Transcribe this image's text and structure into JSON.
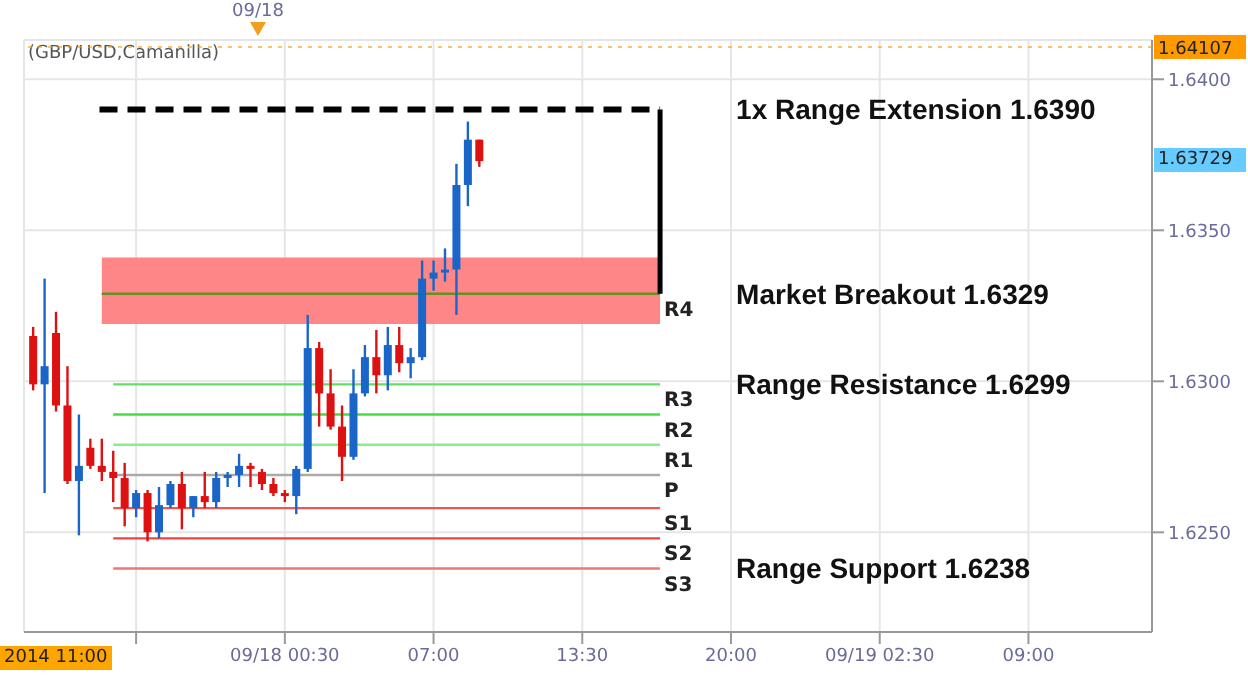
{
  "chart_data": {
    "type": "candlestick",
    "subtitle": "(GBP/USD,Camanilla)",
    "x": [
      "2014-09-17T13:30",
      "2014-09-17T14:00",
      "2014-09-17T14:30",
      "2014-09-17T15:00",
      "2014-09-17T15:30",
      "2014-09-17T16:00",
      "2014-09-17T16:30",
      "2014-09-17T17:00",
      "2014-09-17T17:30",
      "2014-09-17T18:00",
      "2014-09-17T18:30",
      "2014-09-17T19:00",
      "2014-09-17T19:30",
      "2014-09-17T20:00",
      "2014-09-17T20:30",
      "2014-09-17T21:00",
      "2014-09-17T21:30",
      "2014-09-17T22:00",
      "2014-09-17T22:30",
      "2014-09-17T23:00",
      "2014-09-17T23:30",
      "2014-09-18T00:00",
      "2014-09-18T00:30",
      "2014-09-18T01:00",
      "2014-09-18T01:30",
      "2014-09-18T02:00",
      "2014-09-18T02:30",
      "2014-09-18T03:00",
      "2014-09-18T03:30",
      "2014-09-18T04:00",
      "2014-09-18T04:30",
      "2014-09-18T05:00",
      "2014-09-18T05:30",
      "2014-09-18T06:00",
      "2014-09-18T06:30",
      "2014-09-18T07:00",
      "2014-09-18T07:30",
      "2014-09-18T08:00",
      "2014-09-18T08:30",
      "2014-09-18T09:00"
    ],
    "ohlc": [
      [
        1.6315,
        1.6318,
        1.6297,
        1.6299
      ],
      [
        1.6299,
        1.6334,
        1.6263,
        1.6305
      ],
      [
        1.6316,
        1.6323,
        1.629,
        1.6292
      ],
      [
        1.6292,
        1.6305,
        1.6266,
        1.6267
      ],
      [
        1.6267,
        1.6289,
        1.6249,
        1.6272
      ],
      [
        1.6278,
        1.6281,
        1.6271,
        1.6272
      ],
      [
        1.6272,
        1.6281,
        1.6267,
        1.627
      ],
      [
        1.627,
        1.6277,
        1.626,
        1.6268
      ],
      [
        1.6268,
        1.6273,
        1.6252,
        1.6258
      ],
      [
        1.6258,
        1.6264,
        1.6255,
        1.6263
      ],
      [
        1.6263,
        1.6264,
        1.6247,
        1.625
      ],
      [
        1.625,
        1.6265,
        1.6248,
        1.6259
      ],
      [
        1.6259,
        1.6267,
        1.6258,
        1.6266
      ],
      [
        1.6266,
        1.627,
        1.6251,
        1.6258
      ],
      [
        1.6258,
        1.6262,
        1.6255,
        1.6262
      ],
      [
        1.6262,
        1.627,
        1.6258,
        1.626
      ],
      [
        1.626,
        1.627,
        1.6258,
        1.6268
      ],
      [
        1.6268,
        1.627,
        1.6265,
        1.6269
      ],
      [
        1.6269,
        1.6276,
        1.6265,
        1.6272
      ],
      [
        1.6272,
        1.6273,
        1.6265,
        1.6271
      ],
      [
        1.627,
        1.6271,
        1.6264,
        1.6266
      ],
      [
        1.6266,
        1.6268,
        1.6262,
        1.6263
      ],
      [
        1.6263,
        1.6264,
        1.626,
        1.6262
      ],
      [
        1.6262,
        1.6272,
        1.6256,
        1.6271
      ],
      [
        1.6271,
        1.6322,
        1.627,
        1.6311
      ],
      [
        1.6311,
        1.6313,
        1.6285,
        1.6296
      ],
      [
        1.6296,
        1.6304,
        1.6284,
        1.6285
      ],
      [
        1.6285,
        1.6292,
        1.6267,
        1.6275
      ],
      [
        1.6275,
        1.6304,
        1.6274,
        1.6296
      ],
      [
        1.6296,
        1.6312,
        1.6295,
        1.6308
      ],
      [
        1.6308,
        1.6317,
        1.6296,
        1.6302
      ],
      [
        1.6302,
        1.6318,
        1.6297,
        1.6312
      ],
      [
        1.6312,
        1.6318,
        1.6303,
        1.6306
      ],
      [
        1.6306,
        1.6311,
        1.6301,
        1.6308
      ],
      [
        1.6308,
        1.634,
        1.6307,
        1.6334
      ],
      [
        1.6334,
        1.634,
        1.633,
        1.6336
      ],
      [
        1.6336,
        1.6344,
        1.6333,
        1.6337
      ],
      [
        1.6337,
        1.6372,
        1.6322,
        1.6365
      ],
      [
        1.6365,
        1.6386,
        1.6358,
        1.638
      ],
      [
        1.638,
        1.638,
        1.6371,
        1.63729
      ]
    ],
    "colors": [
      "#dd1111",
      "#1a66c8",
      "#dd1111",
      "#dd1111",
      "#1a66c8",
      "#dd1111",
      "#dd1111",
      "#dd1111",
      "#dd1111",
      "#1a66c8",
      "#dd1111",
      "#1a66c8",
      "#1a66c8",
      "#dd1111",
      "#1a66c8",
      "#dd1111",
      "#1a66c8",
      "#1a66c8",
      "#1a66c8",
      "#dd1111",
      "#dd1111",
      "#dd1111",
      "#dd1111",
      "#1a66c8",
      "#1a66c8",
      "#dd1111",
      "#dd1111",
      "#dd1111",
      "#1a66c8",
      "#1a66c8",
      "#dd1111",
      "#1a66c8",
      "#dd1111",
      "#1a66c8",
      "#1a66c8",
      "#1a66c8",
      "#1a66c8",
      "#1a66c8",
      "#1a66c8",
      "#dd1111"
    ],
    "series": [
      {
        "type": "line",
        "name": "R4",
        "color": "#6b8e23",
        "x": [
          "2014-09-17T16:30",
          "2014-09-18T16:54"
        ],
        "values": [
          1.6329,
          1.6329
        ],
        "lower": [
          1.6319,
          1.6319
        ],
        "upper": [
          1.6341,
          1.6341
        ]
      },
      {
        "type": "line",
        "name": "R3",
        "color": "#66dd66",
        "x": [
          "2014-09-17T17:00",
          "2014-09-18T16:54"
        ],
        "values": [
          1.6299,
          1.6299
        ]
      },
      {
        "type": "line",
        "name": "R2",
        "color": "#44dd44",
        "x": [
          "2014-09-17T17:00",
          "2014-09-18T16:54"
        ],
        "values": [
          1.6289,
          1.6289
        ]
      },
      {
        "type": "line",
        "name": "R1",
        "color": "#88ee88",
        "x": [
          "2014-09-17T17:00",
          "2014-09-18T16:54"
        ],
        "values": [
          1.6279,
          1.6279
        ]
      },
      {
        "type": "line",
        "name": "P",
        "color": "#aaaaaa",
        "x": [
          "2014-09-17T17:00",
          "2014-09-18T16:54"
        ],
        "values": [
          1.6269,
          1.6269
        ]
      },
      {
        "type": "line",
        "name": "S1",
        "color": "#ee5555",
        "x": [
          "2014-09-17T17:00",
          "2014-09-18T16:54"
        ],
        "values": [
          1.6258,
          1.6258
        ]
      },
      {
        "type": "line",
        "name": "S2",
        "color": "#ee4444",
        "x": [
          "2014-09-17T17:00",
          "2014-09-18T16:54"
        ],
        "values": [
          1.6248,
          1.6248
        ]
      },
      {
        "type": "line",
        "name": "S3",
        "color": "#ee7777",
        "x": [
          "2014-09-17T17:00",
          "2014-09-18T16:54"
        ],
        "values": [
          1.6238,
          1.6238
        ]
      },
      {
        "type": "line",
        "color": "#000000",
        "line_style": "dashed",
        "x": [
          "2014-09-17T16:24",
          "2014-09-18T16:54"
        ],
        "values": [
          1.639,
          1.639
        ]
      },
      {
        "type": "line",
        "color": "#000000",
        "x": [
          "2014-09-18T16:54",
          "2014-09-18T16:54"
        ],
        "values": [
          1.6329,
          1.639
        ]
      }
    ],
    "annotations": [
      {
        "text": "1x Range Extension 1.6390",
        "x": "2014-09-18T16:54",
        "y": 1.639
      },
      {
        "text": "Market Breakout 1.6329",
        "x": "2014-09-18T16:54",
        "y": 1.6329
      },
      {
        "text": "Range Resistance 1.6299",
        "x": "2014-09-18T16:54",
        "y": 1.6299
      },
      {
        "text": "Range Support 1.6238",
        "x": "2014-09-18T16:54",
        "y": 1.6238
      },
      "2014 11:00",
      "09/18",
      "1.63729"
    ],
    "ref_lines": [
      {
        "axis": "y",
        "value": 1.64107,
        "label": "1.64107",
        "color": "#ff9900",
        "line_style": "dotted"
      }
    ],
    "xlim": [
      "2014-09-17T13:06",
      "2014-09-19T14:24"
    ],
    "xticks": [
      {
        "value": "2014-09-17T18:00",
        "label": null
      },
      {
        "value": "2014-09-18T00:30",
        "label": "09/18 00:30"
      },
      {
        "value": "2014-09-18T07:00",
        "label": "07:00"
      },
      {
        "value": "2014-09-18T13:30",
        "label": "13:30"
      },
      {
        "value": "2014-09-18T20:00",
        "label": "20:00"
      },
      {
        "value": "2014-09-19T02:30",
        "label": "09/19 02:30"
      },
      {
        "value": "2014-09-19T09:00",
        "label": "09:00"
      }
    ],
    "ylim": [
      1.6217,
      1.6413
    ],
    "yticks": [
      {
        "value": 1.625,
        "label": "1.6250"
      },
      {
        "value": 1.63,
        "label": "1.6300"
      },
      {
        "value": 1.635,
        "label": "1.6350"
      },
      {
        "value": 1.64,
        "label": "1.6400"
      }
    ],
    "grid": true,
    "marker": "none",
    "line_style": "solid"
  }
}
